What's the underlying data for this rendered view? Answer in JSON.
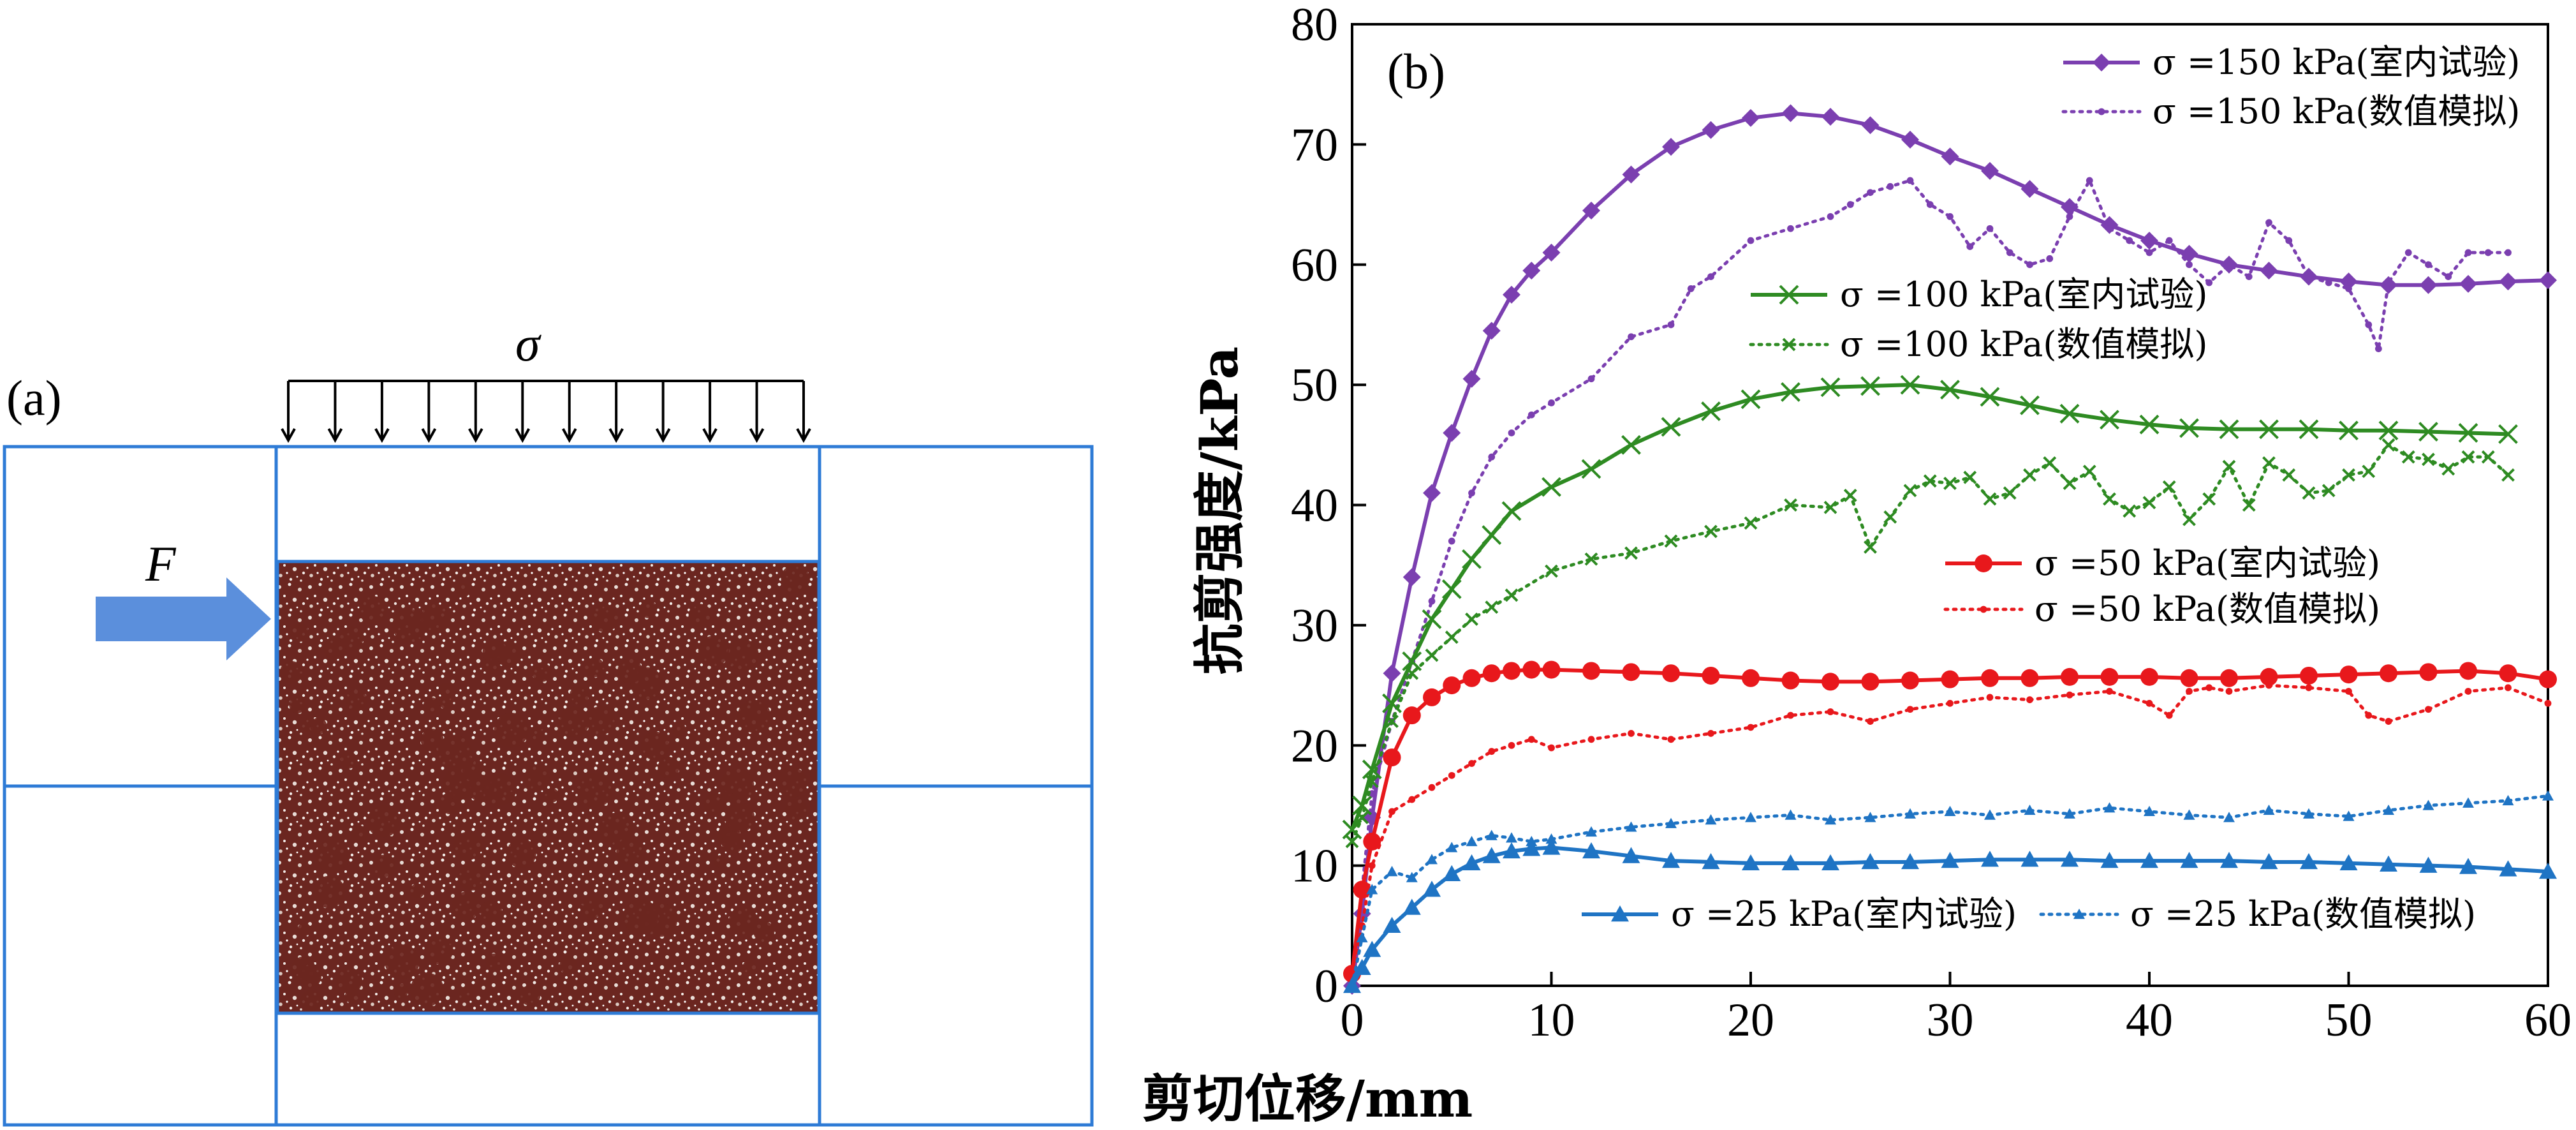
{
  "panel_a": {
    "label": "(a)",
    "load_symbol": "σ",
    "force_symbol": "F",
    "box_color": "#2e7bd6",
    "arrow_color": "#5b8fdc",
    "sample_color": "#6b2620"
  },
  "chart_data": {
    "type": "line",
    "panel_label": "(b)",
    "title": "",
    "xlabel": "剪切位移/mm",
    "ylabel": "抗剪强度/kPa",
    "xlim": [
      0,
      60
    ],
    "ylim": [
      0,
      80
    ],
    "xticks": [
      0,
      10,
      20,
      30,
      40,
      50,
      60
    ],
    "yticks": [
      0,
      10,
      20,
      30,
      40,
      50,
      60,
      70,
      80
    ],
    "grid": false,
    "series": [
      {
        "name": "σ =150 kPa(室内试验)",
        "color": "#7b3fb0",
        "style": "solid",
        "marker": "diamond",
        "x": [
          0,
          0.5,
          1,
          2,
          3,
          4,
          5,
          6,
          7,
          8,
          9,
          10,
          12,
          14,
          16,
          18,
          20,
          22,
          24,
          26,
          28,
          30,
          32,
          34,
          36,
          38,
          40,
          42,
          44,
          46,
          48,
          50,
          52,
          54,
          56,
          58,
          60
        ],
        "y": [
          0,
          6,
          14,
          26,
          34,
          41,
          46,
          50.5,
          54.5,
          57.5,
          59.5,
          61,
          64.5,
          67.5,
          69.8,
          71.2,
          72.2,
          72.6,
          72.3,
          71.6,
          70.4,
          69,
          67.8,
          66.3,
          64.8,
          63.3,
          62,
          60.9,
          60,
          59.5,
          59,
          58.6,
          58.3,
          58.3,
          58.4,
          58.6,
          58.7
        ]
      },
      {
        "name": "σ =150 kPa(数值模拟)",
        "color": "#7b3fb0",
        "style": "dotted",
        "marker": "dot",
        "x": [
          0,
          0.5,
          1,
          2,
          3,
          4,
          5,
          6,
          7,
          8,
          9,
          10,
          12,
          14,
          16,
          17,
          18,
          20,
          22,
          24,
          25,
          26,
          27,
          28,
          29,
          30,
          31,
          32,
          33,
          34,
          35,
          36,
          37,
          38,
          39,
          40,
          41,
          42,
          43,
          44,
          45,
          46,
          47,
          48,
          49,
          50,
          51,
          51.5,
          52,
          53,
          54,
          55,
          56,
          57,
          58
        ],
        "y": [
          0,
          8,
          16,
          22,
          27,
          32,
          37,
          41,
          44,
          46,
          47.5,
          48.5,
          50.5,
          54,
          55,
          58,
          59,
          62,
          63,
          64,
          65,
          66,
          66.5,
          67,
          65,
          64,
          61.5,
          63,
          61,
          60,
          60.5,
          64,
          67,
          63,
          62,
          61,
          62,
          60,
          58.5,
          60,
          59,
          63.5,
          62,
          59,
          58.5,
          58,
          55,
          53,
          58.5,
          61,
          60,
          59,
          61,
          61,
          61
        ]
      },
      {
        "name": "σ =100 kPa(室内试验)",
        "color": "#2e8b22",
        "style": "solid",
        "marker": "x",
        "x": [
          0,
          0.5,
          1,
          2,
          3,
          4,
          5,
          6,
          7,
          8,
          10,
          12,
          14,
          16,
          18,
          20,
          22,
          24,
          26,
          28,
          30,
          32,
          34,
          36,
          38,
          40,
          42,
          44,
          46,
          48,
          50,
          52,
          54,
          56,
          58
        ],
        "y": [
          13,
          15,
          18,
          23.5,
          27,
          30.5,
          33,
          35.5,
          37.5,
          39.5,
          41.5,
          43,
          45,
          46.5,
          47.8,
          48.8,
          49.4,
          49.8,
          49.9,
          50,
          49.6,
          49,
          48.3,
          47.6,
          47.1,
          46.7,
          46.4,
          46.3,
          46.3,
          46.3,
          46.2,
          46.2,
          46.1,
          46,
          45.9
        ]
      },
      {
        "name": "σ =100 kPa(数值模拟)",
        "color": "#2e8b22",
        "style": "dotted",
        "marker": "x",
        "x": [
          0,
          0.5,
          1,
          2,
          3,
          4,
          5,
          6,
          7,
          8,
          10,
          12,
          14,
          16,
          18,
          20,
          22,
          24,
          25,
          26,
          27,
          28,
          29,
          30,
          31,
          32,
          33,
          34,
          35,
          36,
          37,
          38,
          39,
          40,
          41,
          42,
          43,
          44,
          45,
          46,
          47,
          48,
          49,
          50,
          51,
          52,
          53,
          54,
          55,
          56,
          57,
          58
        ],
        "y": [
          12,
          14,
          17,
          22,
          26,
          27.5,
          29,
          30.5,
          31.5,
          32.5,
          34.5,
          35.5,
          36,
          37,
          37.8,
          38.5,
          40,
          39.8,
          40.8,
          36.5,
          39,
          41.2,
          42,
          41.8,
          42.3,
          40.5,
          41,
          42.5,
          43.5,
          41.8,
          42.8,
          40.5,
          39.5,
          40.2,
          41.5,
          38.8,
          40.5,
          43.2,
          40,
          43.5,
          42.5,
          41,
          41.2,
          42.5,
          42.8,
          45,
          44,
          43.8,
          43,
          44,
          44,
          42.5
        ]
      },
      {
        "name": "σ =50 kPa(室内试验)",
        "color": "#e8181c",
        "style": "solid",
        "marker": "circle",
        "x": [
          0,
          0.5,
          1,
          2,
          3,
          4,
          5,
          6,
          7,
          8,
          9,
          10,
          12,
          14,
          16,
          18,
          20,
          22,
          24,
          26,
          28,
          30,
          32,
          34,
          36,
          38,
          40,
          42,
          44,
          46,
          48,
          50,
          52,
          54,
          56,
          58,
          60
        ],
        "y": [
          1,
          8,
          12,
          19,
          22.5,
          24,
          25,
          25.6,
          26,
          26.2,
          26.3,
          26.3,
          26.2,
          26.1,
          26,
          25.8,
          25.6,
          25.4,
          25.3,
          25.3,
          25.4,
          25.5,
          25.6,
          25.6,
          25.7,
          25.7,
          25.7,
          25.6,
          25.6,
          25.7,
          25.8,
          25.9,
          26,
          26.1,
          26.2,
          26,
          25.5
        ]
      },
      {
        "name": "σ =50 kPa(数值模拟)",
        "color": "#e8181c",
        "style": "dotted",
        "marker": "dot",
        "x": [
          0,
          0.5,
          1,
          2,
          3,
          4,
          5,
          6,
          7,
          8,
          9,
          10,
          12,
          14,
          16,
          18,
          20,
          22,
          24,
          26,
          28,
          30,
          32,
          34,
          36,
          38,
          40,
          41,
          42,
          43,
          44,
          46,
          48,
          50,
          51,
          52,
          54,
          56,
          58,
          60
        ],
        "y": [
          0,
          5,
          10,
          14.5,
          15.5,
          16.5,
          17.5,
          18.5,
          19.5,
          20,
          20.5,
          19.8,
          20.5,
          21,
          20.5,
          21,
          21.5,
          22.5,
          22.8,
          22,
          23,
          23.5,
          24,
          23.8,
          24.2,
          24.5,
          23.5,
          22.5,
          24.5,
          24.8,
          24.5,
          25,
          24.8,
          24.5,
          22.5,
          22,
          23,
          24.5,
          24.8,
          23.5
        ]
      },
      {
        "name": "σ =25 kPa(室内试验)",
        "color": "#1f74c4",
        "style": "solid",
        "marker": "triangle",
        "x": [
          0,
          0.5,
          1,
          2,
          3,
          4,
          5,
          6,
          7,
          8,
          9,
          10,
          12,
          14,
          16,
          18,
          20,
          22,
          24,
          26,
          28,
          30,
          32,
          34,
          36,
          38,
          40,
          42,
          44,
          46,
          48,
          50,
          52,
          54,
          56,
          58,
          60
        ],
        "y": [
          0,
          1.5,
          3,
          5,
          6.5,
          8,
          9.3,
          10.2,
          10.8,
          11.2,
          11.4,
          11.5,
          11.2,
          10.8,
          10.4,
          10.3,
          10.2,
          10.2,
          10.2,
          10.3,
          10.3,
          10.4,
          10.5,
          10.5,
          10.5,
          10.4,
          10.4,
          10.4,
          10.4,
          10.3,
          10.3,
          10.2,
          10.1,
          10,
          9.9,
          9.7,
          9.5
        ]
      },
      {
        "name": "σ =25 kPa(数值模拟)",
        "color": "#1f74c4",
        "style": "dotted",
        "marker": "triangle",
        "x": [
          0,
          0.5,
          1,
          2,
          3,
          4,
          5,
          6,
          7,
          8,
          9,
          10,
          12,
          14,
          16,
          18,
          20,
          22,
          24,
          26,
          28,
          30,
          32,
          34,
          36,
          38,
          40,
          42,
          44,
          46,
          48,
          50,
          52,
          54,
          56,
          58,
          60
        ],
        "y": [
          0,
          4,
          8,
          9.5,
          9,
          10.5,
          11.5,
          12,
          12.5,
          12.3,
          12,
          12.2,
          12.8,
          13.2,
          13.5,
          13.8,
          14,
          14.2,
          13.8,
          14,
          14.3,
          14.5,
          14.2,
          14.6,
          14.3,
          14.8,
          14.5,
          14.2,
          14,
          14.6,
          14.3,
          14.1,
          14.6,
          15,
          15.2,
          15.4,
          15.8
        ]
      }
    ],
    "legend_groups": [
      {
        "items": [
          0,
          1
        ],
        "position": "top-right"
      },
      {
        "items": [
          2,
          3
        ],
        "position": "upper-middle"
      },
      {
        "items": [
          4,
          5
        ],
        "position": "middle-right"
      },
      {
        "items": [
          6,
          7
        ],
        "position": "bottom",
        "inline": true
      }
    ]
  }
}
